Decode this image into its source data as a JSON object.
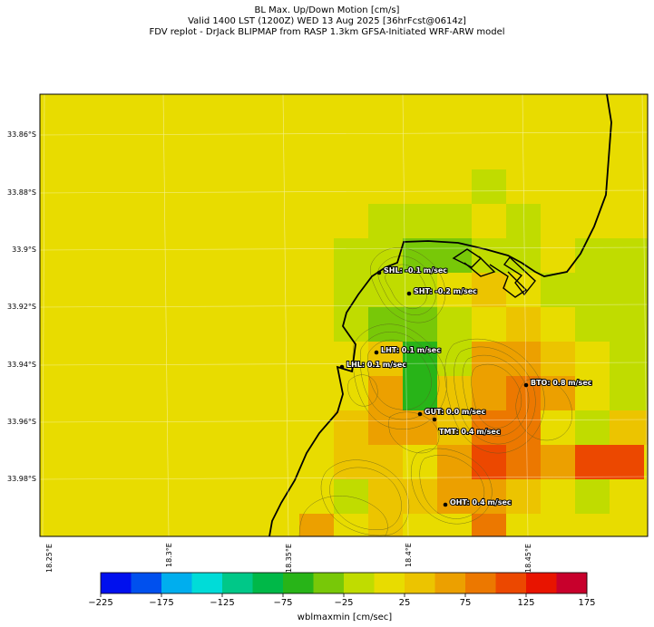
{
  "title": {
    "line1": "BL Max. Up/Down Motion [cm/s]",
    "line2": "Valid 1400 LST (1200Z) WED 13 Aug 2025 [36hrFcst@0614z]",
    "line3": "FDV replot - DrJack BLIPMAP from RASP 1.3km GFSA-Initiated WRF-ARW model"
  },
  "lat_labels": [
    "33.86°S",
    "33.88°S",
    "33.9°S",
    "33.92°S",
    "33.94°S",
    "33.96°S",
    "33.98°S"
  ],
  "lon_labels": [
    "18.25°E",
    "18.3°E",
    "18.35°E",
    "18.4°E",
    "18.45°E"
  ],
  "stations": [
    {
      "id": "SHL",
      "label": "SHL: -0.1 m/sec"
    },
    {
      "id": "SHT",
      "label": "SHT: -0.2 m/sec"
    },
    {
      "id": "LHT",
      "label": "LHT: 0.1 m/sec"
    },
    {
      "id": "LHL",
      "label": "LHL: 0.1 m/sec"
    },
    {
      "id": "BTO",
      "label": "BTO: 0.8 m/sec"
    },
    {
      "id": "GUT",
      "label": "GUT: 0.0 m/sec"
    },
    {
      "id": "TMT",
      "label": "TMT: 0.4 m/sec"
    },
    {
      "id": "OHT",
      "label": "OHT: 0.4 m/sec"
    }
  ],
  "colorbar": {
    "title": "wblmaxmin [cm/sec]",
    "ticks": [
      "−225",
      "−175",
      "−125",
      "−75",
      "−25",
      "25",
      "75",
      "125",
      "175"
    ],
    "colors": [
      "#0010ee",
      "#0050ee",
      "#00aeee",
      "#00dcd8",
      "#00c888",
      "#00b848",
      "#28b418",
      "#78c808",
      "#c0dc00",
      "#e8dc00",
      "#ecc400",
      "#eca000",
      "#ec7800",
      "#ec4800",
      "#e81400",
      "#c8002c"
    ]
  },
  "map_colors": {
    "yellow": "#e8dc00",
    "lightgreen": "#c0dc00",
    "green1": "#78c808",
    "green2": "#28b418",
    "amber": "#ecc400",
    "orange": "#eca000",
    "dkorange": "#ec7800",
    "red": "#ec4800"
  }
}
